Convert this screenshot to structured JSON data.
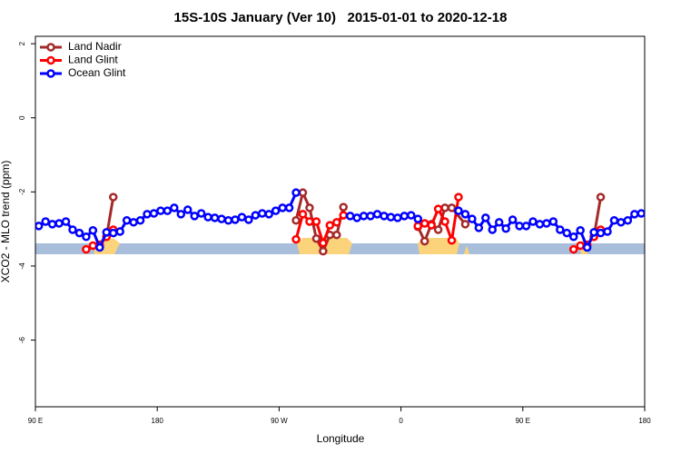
{
  "chart_data": {
    "type": "line",
    "title": "15S-10S January (Ver 10)   2015-01-01 to 2020-12-18",
    "x_label": "Longitude",
    "y_label": "XCO2 - MLO trend (ppm)",
    "xlim": [
      90,
      540
    ],
    "ylim": [
      -7.8,
      2.2
    ],
    "xticks": [
      {
        "value": 90,
        "label": "90 E"
      },
      180,
      {
        "value": 270,
        "label": "90 W"
      },
      {
        "value": 360,
        "label": "0"
      },
      {
        "value": 450,
        "label": "90 E"
      },
      {
        "value": 540,
        "label": "180"
      }
    ],
    "yticks": [
      -6,
      -4,
      -2,
      0,
      2
    ],
    "legend": "top-left",
    "series": [
      {
        "name": "Land Nadir",
        "color": "#a52a2a",
        "x": [
          137.5,
          142.5,
          147.5,
          152.5,
          282.5,
          287.5,
          292.5,
          297.5,
          302.5,
          307.5,
          312.5,
          317.5,
          322.5,
          372.5,
          377.5,
          382.5,
          387.5,
          392.5,
          397.5,
          407.5,
          412.5,
          497.5,
          502.5,
          507.5
        ],
        "values": [
          -3.43,
          -3.21,
          -2.14,
          null,
          -2.77,
          -2.02,
          -2.43,
          -3.26,
          -3.6,
          -3.16,
          -3.16,
          -2.41,
          null,
          -2.94,
          -3.33,
          -2.87,
          -3.02,
          -2.43,
          -2.43,
          -2.87,
          null,
          -3.43,
          -3.21,
          -2.14
        ]
      },
      {
        "name": "Land Glint",
        "color": "#ff0000",
        "x": [
          127.5,
          132.5,
          137.5,
          142.5,
          147.5,
          152.5,
          282.5,
          287.5,
          292.5,
          297.5,
          302.5,
          307.5,
          312.5,
          317.5,
          322.5,
          372.5,
          377.5,
          382.5,
          387.5,
          392.5,
          397.5,
          402.5,
          407.5,
          487.5,
          492.5,
          497.5,
          502.5,
          507.5
        ],
        "values": [
          -3.55,
          -3.45,
          -3.43,
          -3.21,
          -3.02,
          null,
          -3.28,
          -2.6,
          -2.8,
          -2.8,
          -3.38,
          -2.9,
          -2.82,
          -2.63,
          null,
          -2.92,
          -2.85,
          -2.9,
          -2.46,
          -2.8,
          -3.31,
          -2.14,
          null,
          -3.55,
          -3.45,
          -3.43,
          -3.21,
          -3.02
        ]
      },
      {
        "name": "Ocean Glint",
        "color": "#0000ff",
        "x": [
          92.5,
          97.5,
          102.5,
          107.5,
          112.5,
          117.5,
          122.5,
          127.5,
          132.5,
          137.5,
          142.5,
          147.5,
          152.5,
          157.5,
          162.5,
          167.5,
          172.5,
          177.5,
          182.5,
          187.5,
          192.5,
          197.5,
          202.5,
          207.5,
          212.5,
          217.5,
          222.5,
          227.5,
          232.5,
          237.5,
          242.5,
          247.5,
          252.5,
          257.5,
          262.5,
          267.5,
          272.5,
          277.5,
          282.5,
          287.5,
          292.5,
          297.5,
          302.5,
          307.5,
          312.5,
          317.5,
          322.5,
          327.5,
          332.5,
          337.5,
          342.5,
          347.5,
          352.5,
          357.5,
          362.5,
          367.5,
          372.5,
          377.5,
          382.5,
          387.5,
          392.5,
          397.5,
          402.5,
          407.5,
          412.5,
          417.5,
          422.5,
          427.5,
          432.5,
          437.5,
          442.5,
          447.5,
          452.5,
          457.5,
          462.5,
          467.5,
          472.5,
          477.5,
          482.5,
          487.5,
          492.5,
          497.5,
          502.5,
          507.5,
          512.5,
          517.5,
          522.5,
          527.5,
          532.5,
          537.5
        ],
        "values": [
          -2.92,
          -2.8,
          -2.87,
          -2.85,
          -2.8,
          -3.02,
          -3.11,
          -3.21,
          -3.04,
          -3.5,
          -3.09,
          -3.11,
          -3.07,
          -2.77,
          -2.82,
          -2.77,
          -2.6,
          -2.58,
          -2.51,
          -2.51,
          -2.43,
          -2.6,
          -2.48,
          -2.65,
          -2.58,
          -2.68,
          -2.7,
          -2.73,
          -2.77,
          -2.75,
          -2.68,
          -2.75,
          -2.63,
          -2.58,
          -2.6,
          -2.51,
          -2.43,
          -2.43,
          -2.02,
          null,
          null,
          null,
          null,
          null,
          null,
          null,
          -2.65,
          -2.7,
          -2.65,
          -2.65,
          -2.6,
          -2.65,
          -2.68,
          -2.7,
          -2.65,
          -2.63,
          -2.73,
          null,
          null,
          null,
          null,
          null,
          -2.51,
          -2.6,
          -2.73,
          -2.97,
          -2.7,
          -3.02,
          -2.82,
          -2.99,
          -2.75,
          -2.92,
          -2.92,
          -2.8,
          -2.87,
          -2.85,
          -2.8,
          -3.02,
          -3.11,
          -3.21,
          -3.04,
          -3.5,
          -3.09,
          -3.11,
          -3.07,
          -2.77,
          -2.82,
          -2.77,
          -2.6,
          -2.58
        ]
      }
    ]
  }
}
